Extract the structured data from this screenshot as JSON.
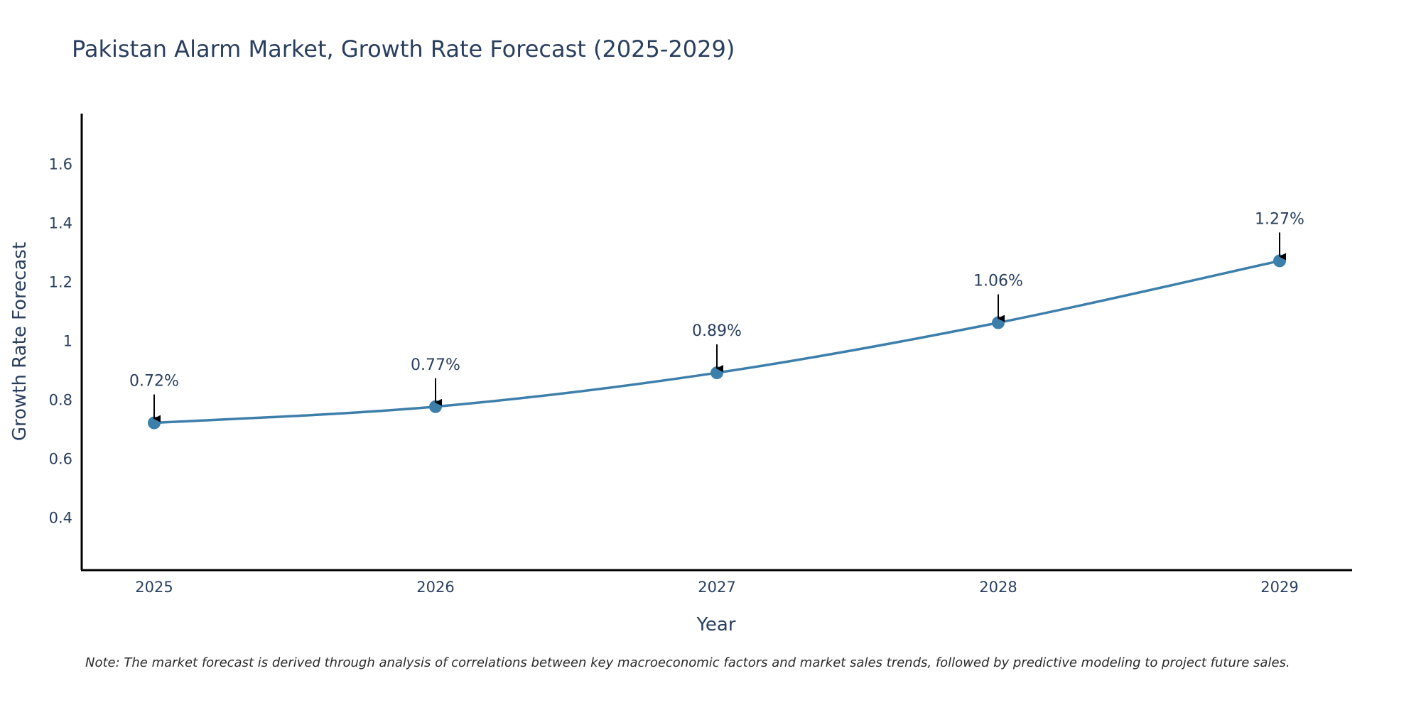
{
  "chart_data": {
    "type": "line",
    "title": "Pakistan Alarm Market, Growth Rate Forecast (2025-2029)",
    "xlabel": "Year",
    "ylabel": "Growth Rate Forecast",
    "categories": [
      "2025",
      "2026",
      "2027",
      "2028",
      "2029"
    ],
    "series": [
      {
        "name": "Growth Rate Forecast",
        "values": [
          0.72,
          0.775,
          0.89,
          1.06,
          1.27
        ],
        "labels": [
          "0.72%",
          "0.77%",
          "0.89%",
          "1.06%",
          "1.27%"
        ]
      }
    ],
    "ylim": [
      0.22,
      1.77
    ],
    "yticks": [
      0.4,
      0.6,
      0.8,
      1.0,
      1.2,
      1.4,
      1.6
    ],
    "ytick_labels": [
      "0.4",
      "0.6",
      "0.8",
      "1",
      "1.2",
      "1.4",
      "1.6"
    ],
    "grid": false,
    "line_color": "#3d7fab",
    "marker_color": "#3d7fab",
    "note": "Note: The market forecast is derived through analysis of correlations between key macroeconomic factors and market sales trends, followed by predictive modeling to project future sales."
  }
}
